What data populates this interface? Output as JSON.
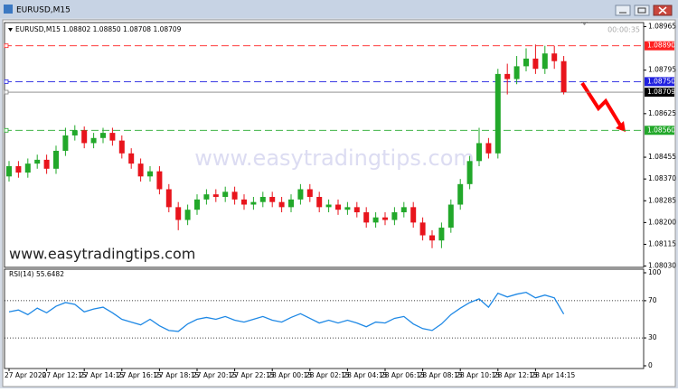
{
  "window": {
    "title": "EURUSD,M15"
  },
  "chart_data": [
    {
      "type": "candlestick",
      "title": "EURUSD,M15  1.08802 1.08850 1.08708 1.08709",
      "timer": "00:00:35",
      "categories": [
        "27 Apr 2020",
        null,
        null,
        null,
        "27 Apr 12:15",
        null,
        null,
        null,
        "27 Apr 14:15",
        null,
        null,
        null,
        "27 Apr 16:15",
        null,
        null,
        null,
        "27 Apr 18:15",
        null,
        null,
        null,
        "27 Apr 20:15",
        null,
        null,
        null,
        "27 Apr 22:15",
        null,
        null,
        null,
        "28 Apr 00:15",
        null,
        null,
        null,
        "28 Apr 02:15",
        null,
        null,
        null,
        "28 Apr 04:15",
        null,
        null,
        null,
        "28 Apr 06:15",
        null,
        null,
        null,
        "28 Apr 08:15",
        null,
        null,
        null,
        "28 Apr 10:15",
        null,
        null,
        null,
        "28 Apr 12:15",
        null,
        null,
        null,
        "28 Apr 14:15",
        null,
        null,
        null
      ],
      "open": [
        1.0838,
        1.0842,
        1.08395,
        1.0843,
        1.08445,
        1.0841,
        1.0848,
        1.0854,
        1.0856,
        1.0851,
        1.0853,
        1.0855,
        1.0852,
        1.0847,
        1.0843,
        1.0838,
        1.084,
        1.0833,
        1.0826,
        1.0821,
        1.0825,
        1.0829,
        1.0831,
        1.083,
        1.0832,
        1.0829,
        1.0827,
        1.0828,
        1.083,
        1.0828,
        1.0826,
        1.0829,
        1.0833,
        1.083,
        1.0826,
        1.0827,
        1.0825,
        1.0826,
        1.0824,
        1.082,
        1.0822,
        1.0821,
        1.0824,
        1.0826,
        1.082,
        1.0815,
        1.0813,
        1.0818,
        1.0827,
        1.0835,
        1.0844,
        1.0851,
        1.0847,
        1.0878,
        1.0876,
        1.0881,
        1.0884,
        1.088,
        1.0886,
        1.0883
      ],
      "high": [
        1.0844,
        1.0844,
        1.0845,
        1.08465,
        1.08465,
        1.085,
        1.0857,
        1.0858,
        1.08575,
        1.0855,
        1.0857,
        1.0857,
        1.0854,
        1.0849,
        1.0845,
        1.0842,
        1.0842,
        1.0835,
        1.0828,
        1.0827,
        1.0831,
        1.0833,
        1.0833,
        1.0834,
        1.0834,
        1.0831,
        1.083,
        1.0832,
        1.0832,
        1.083,
        1.0831,
        1.0835,
        1.0835,
        1.0832,
        1.0829,
        1.0829,
        1.0828,
        1.0828,
        1.0826,
        1.0824,
        1.0824,
        1.0826,
        1.0828,
        1.0828,
        1.0822,
        1.0817,
        1.082,
        1.0829,
        1.0837,
        1.0846,
        1.0857,
        1.0853,
        1.088,
        1.0882,
        1.0885,
        1.0888,
        1.08895,
        1.0889,
        1.0889,
        1.0885
      ],
      "low": [
        1.0836,
        1.08375,
        1.08375,
        1.0841,
        1.0839,
        1.0839,
        1.0846,
        1.0852,
        1.0849,
        1.0849,
        1.0851,
        1.085,
        1.0845,
        1.0841,
        1.0836,
        1.0836,
        1.0831,
        1.0824,
        1.0817,
        1.0819,
        1.0823,
        1.0827,
        1.0828,
        1.0828,
        1.0827,
        1.0825,
        1.0825,
        1.0826,
        1.0826,
        1.0824,
        1.0824,
        1.0827,
        1.0828,
        1.0824,
        1.0824,
        1.0823,
        1.0823,
        1.0822,
        1.0818,
        1.0818,
        1.0819,
        1.0819,
        1.0822,
        1.0818,
        1.0813,
        1.081,
        1.081,
        1.0816,
        1.0825,
        1.0833,
        1.0842,
        1.0845,
        1.0845,
        1.087,
        1.0874,
        1.0879,
        1.0878,
        1.0878,
        1.088,
        1.087
      ],
      "close": [
        1.0842,
        1.08395,
        1.0843,
        1.08445,
        1.0841,
        1.0848,
        1.0854,
        1.0856,
        1.0851,
        1.0853,
        1.0855,
        1.0852,
        1.0847,
        1.0843,
        1.0838,
        1.084,
        1.0833,
        1.0826,
        1.0821,
        1.0825,
        1.0829,
        1.0831,
        1.083,
        1.0832,
        1.0829,
        1.0827,
        1.0828,
        1.083,
        1.0828,
        1.0826,
        1.0829,
        1.0833,
        1.083,
        1.0826,
        1.0827,
        1.0825,
        1.0826,
        1.0824,
        1.082,
        1.0822,
        1.0821,
        1.0824,
        1.0826,
        1.082,
        1.0815,
        1.0813,
        1.0818,
        1.0827,
        1.0835,
        1.0844,
        1.0851,
        1.0847,
        1.0878,
        1.0876,
        1.0881,
        1.0884,
        1.088,
        1.0886,
        1.0883,
        1.08709
      ],
      "up_color": "#22a82a",
      "down_color": "#e8141c",
      "ylim": [
        1.08025,
        1.0897
      ],
      "yticks": [
        1.08965,
        1.08795,
        1.08625,
        1.08455,
        {
          "value": 1.0837,
          "label": "1.08370"
        },
        1.08285,
        {
          "value": 1.082,
          "label": "1.08200"
        },
        1.08115,
        {
          "value": 1.0803,
          "label": "1.08030"
        }
      ],
      "levels": [
        {
          "value": 1.0889,
          "label": "1.08890",
          "color": "#ff2020",
          "style": "dashed"
        },
        {
          "value": 1.0875,
          "label": "1.08750",
          "color": "#2020e0",
          "style": "dashed"
        },
        {
          "value": 1.08709,
          "label": "1.08709",
          "color": "#808080",
          "style": "solid"
        },
        {
          "value": 1.0856,
          "label": "1.08560",
          "color": "#22a82a",
          "style": "dashed"
        }
      ],
      "annotations": [
        "www.easytradingtips.com",
        "www.easytradingtips.com"
      ]
    },
    {
      "type": "line",
      "title": "RSI(14) 55.6482",
      "color": "#1e88e5",
      "values": [
        58,
        60,
        55,
        62,
        57,
        64,
        68,
        66,
        58,
        61,
        63,
        57,
        50,
        47,
        44,
        50,
        43,
        38,
        37,
        45,
        50,
        52,
        50,
        53,
        49,
        47,
        50,
        53,
        49,
        47,
        52,
        56,
        51,
        46,
        49,
        46,
        49,
        46,
        42,
        47,
        46,
        51,
        53,
        45,
        40,
        38,
        45,
        55,
        62,
        68,
        72,
        63,
        78,
        74,
        77,
        79,
        73,
        76,
        73,
        55.65
      ],
      "ylim": [
        0,
        100
      ],
      "yticks": [
        100,
        70,
        30,
        0
      ]
    }
  ]
}
